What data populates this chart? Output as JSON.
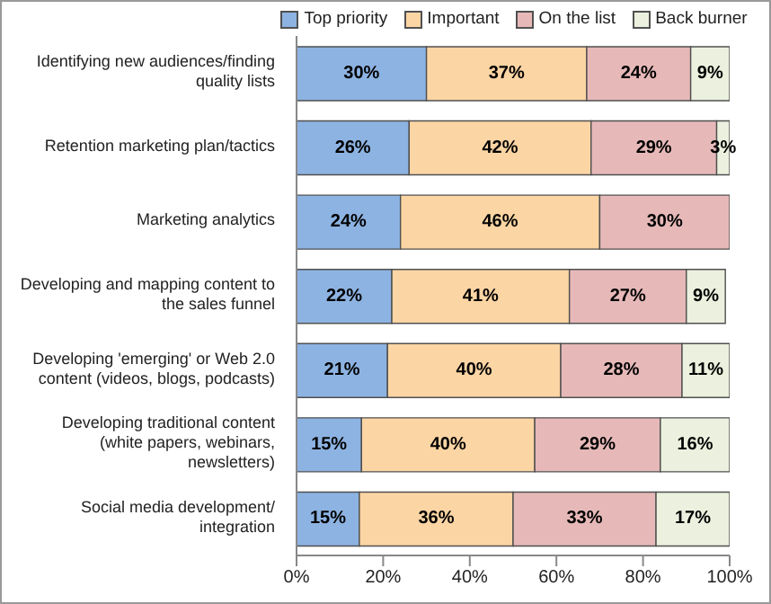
{
  "chart_data": {
    "type": "bar",
    "orientation": "horizontal",
    "stacked": true,
    "categories": [
      "Identifying new audiences/finding quality lists",
      "Retention marketing plan/tactics",
      "Marketing analytics",
      "Developing and mapping content to the sales funnel",
      "Developing 'emerging' or Web 2.0 content (videos, blogs, podcasts)",
      "Developing traditional content (white papers, webinars, newsletters)",
      "Social media development/ integration"
    ],
    "series": [
      {
        "name": "Top priority",
        "color": "#8db3e2",
        "values": [
          30,
          26,
          24,
          22,
          21,
          15,
          14.5
        ],
        "value_labels": [
          "30%",
          "26%",
          "24%",
          "22%",
          "21%",
          "15%",
          "15%"
        ]
      },
      {
        "name": "Important",
        "color": "#fcd5a4",
        "values": [
          37,
          42,
          46,
          41,
          40,
          40,
          35.5
        ],
        "value_labels": [
          "37%",
          "42%",
          "46%",
          "41%",
          "40%",
          "40%",
          "36%"
        ]
      },
      {
        "name": "On the list",
        "color": "#e6b9b8",
        "values": [
          24,
          29,
          30,
          27,
          28,
          29,
          33
        ],
        "value_labels": [
          "24%",
          "29%",
          "30%",
          "27%",
          "28%",
          "29%",
          "33%"
        ]
      },
      {
        "name": "Back burner",
        "color": "#ebf1de",
        "values": [
          9,
          3,
          null,
          9,
          11,
          16,
          17
        ],
        "value_labels": [
          "9%",
          "3%",
          null,
          "9%",
          "11%",
          "16%",
          "17%"
        ]
      }
    ],
    "xlim": [
      0,
      100
    ],
    "xticks": [
      {
        "value": 0,
        "label": "0%"
      },
      {
        "value": 20,
        "label": "20%"
      },
      {
        "value": 40,
        "label": "40%"
      },
      {
        "value": 60,
        "label": "60%"
      },
      {
        "value": 80,
        "label": "80%"
      },
      {
        "value": 100,
        "label": "100%"
      }
    ],
    "legend": "top"
  }
}
